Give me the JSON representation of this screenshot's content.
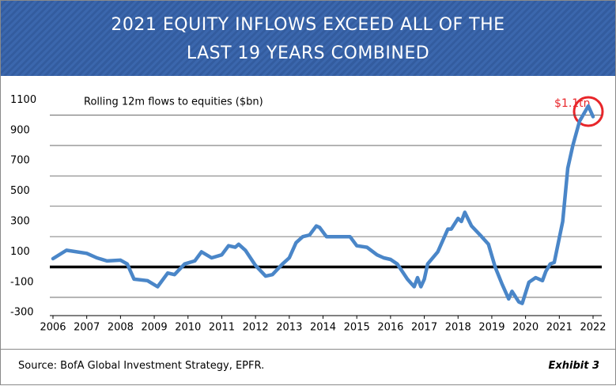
{
  "chart_data": {
    "type": "line",
    "title": [
      "2021 EQUITY INFLOWS EXCEED ALL OF THE",
      "LAST 19 YEARS COMBINED"
    ],
    "annotation": "$1.1tn",
    "source": "Source: BofA Global Investment Strategy, EPFR.",
    "exhibit": "Exhibit 3",
    "xlim": [
      2006,
      2022
    ],
    "xticks": [
      2006,
      2007,
      2008,
      2009,
      2010,
      2011,
      2012,
      2013,
      2014,
      2015,
      2016,
      2017,
      2018,
      2019,
      2020,
      2021,
      2022
    ],
    "ylim": [
      -320,
      1180
    ],
    "yticks": [
      -300,
      -100,
      100,
      300,
      500,
      700,
      900,
      1100
    ],
    "grid": true,
    "series": [
      {
        "name": "Rolling 12m flows to equities ($bn)",
        "color": "#4a86c8",
        "x": [
          2006.0,
          2006.4,
          2007.0,
          2007.3,
          2007.6,
          2008.0,
          2008.2,
          2008.4,
          2008.8,
          2009.1,
          2009.4,
          2009.6,
          2009.9,
          2010.2,
          2010.4,
          2010.7,
          2011.0,
          2011.2,
          2011.4,
          2011.5,
          2011.7,
          2012.0,
          2012.3,
          2012.5,
          2012.8,
          2013.0,
          2013.2,
          2013.4,
          2013.6,
          2013.8,
          2013.9,
          2014.1,
          2014.5,
          2014.8,
          2015.0,
          2015.3,
          2015.6,
          2015.8,
          2016.0,
          2016.2,
          2016.5,
          2016.7,
          2016.8,
          2016.9,
          2017.0,
          2017.1,
          2017.4,
          2017.7,
          2017.8,
          2018.0,
          2018.1,
          2018.2,
          2018.4,
          2018.7,
          2018.9,
          2019.1,
          2019.3,
          2019.5,
          2019.6,
          2019.8,
          2019.9,
          2020.1,
          2020.3,
          2020.5,
          2020.6,
          2020.73,
          2020.85,
          2021.1,
          2021.25,
          2021.4,
          2021.6,
          2021.86,
          2022.0
        ],
        "values": [
          55,
          110,
          90,
          60,
          40,
          45,
          20,
          -80,
          -90,
          -130,
          -40,
          -50,
          20,
          40,
          100,
          60,
          80,
          140,
          130,
          150,
          110,
          10,
          -60,
          -50,
          20,
          60,
          160,
          200,
          210,
          270,
          260,
          200,
          200,
          200,
          140,
          130,
          80,
          60,
          50,
          20,
          -80,
          -130,
          -70,
          -130,
          -80,
          20,
          100,
          250,
          250,
          320,
          300,
          360,
          270,
          200,
          150,
          0,
          -110,
          -210,
          -160,
          -230,
          -240,
          -100,
          -70,
          -90,
          -30,
          20,
          30,
          300,
          650,
          800,
          960,
          1060,
          990
        ]
      }
    ]
  }
}
